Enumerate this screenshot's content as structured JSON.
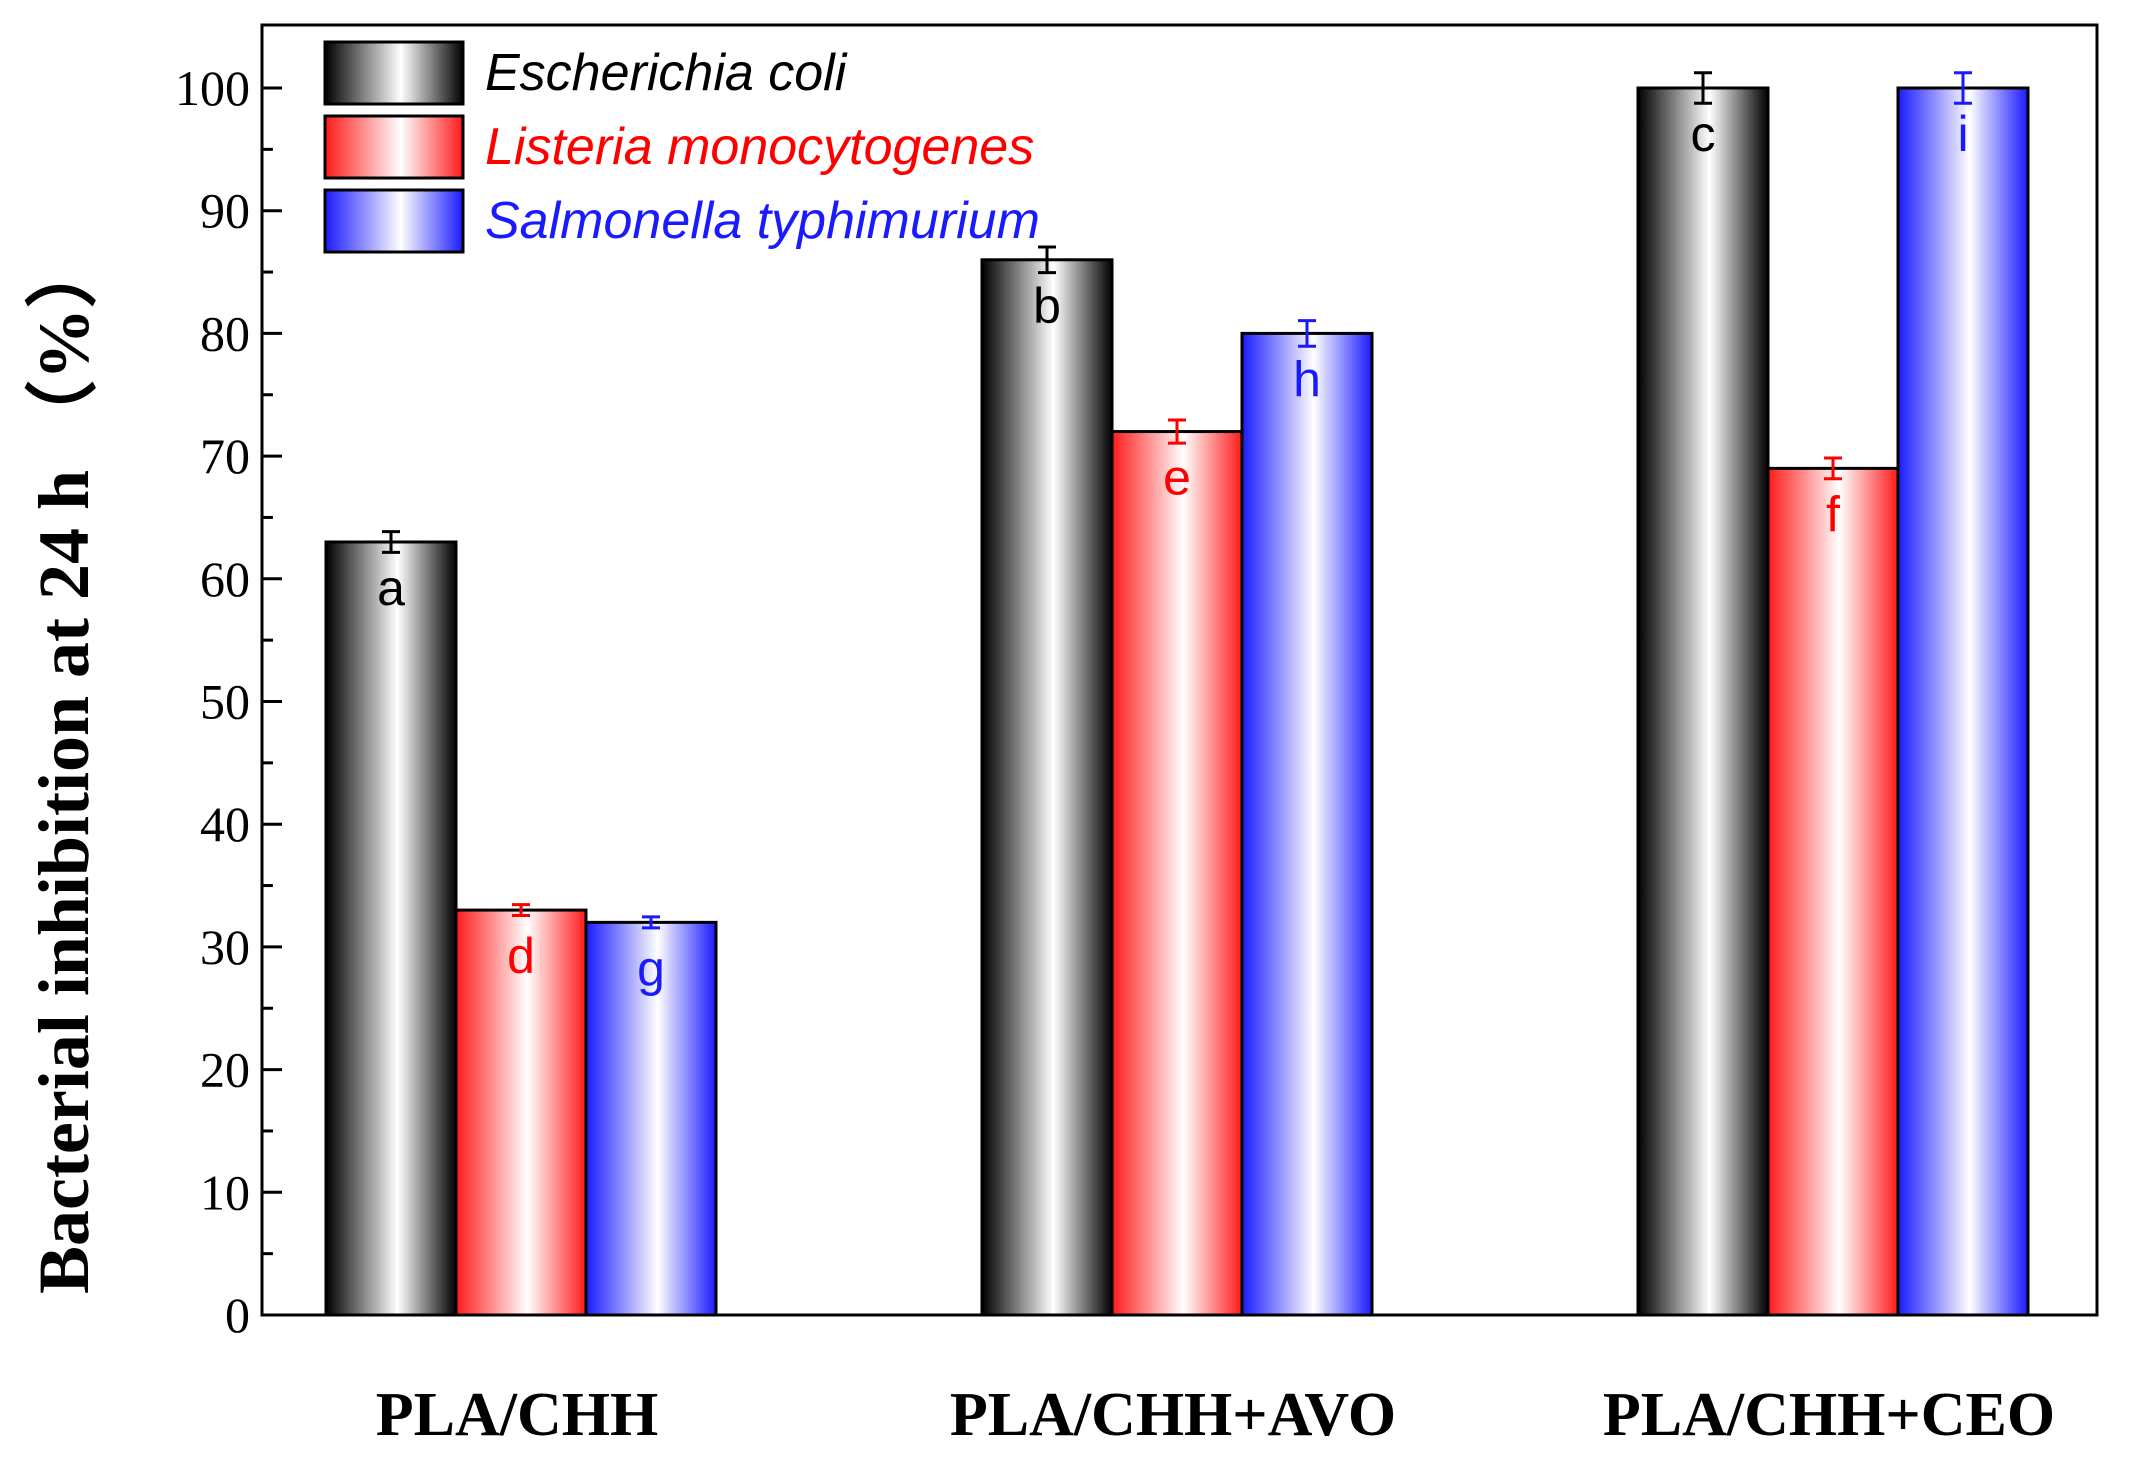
{
  "chart_data": {
    "type": "bar",
    "title": "",
    "xlabel": "",
    "ylabel": "Bacterial inhibition at 24 h （%）",
    "ylim": [
      0,
      100
    ],
    "yticks": [
      0,
      10,
      20,
      30,
      40,
      50,
      60,
      70,
      80,
      90,
      100
    ],
    "grid": false,
    "legend_position": "top-left",
    "categories": [
      "PLA/CHH",
      "PLA/CHH+AVO",
      "PLA/CHH+CEO"
    ],
    "series": [
      {
        "name": "Escherichia coli",
        "color": "#000000",
        "text_color": "#000000",
        "values": [
          63,
          86,
          100
        ],
        "errors": [
          0.6,
          0.8,
          1.0
        ],
        "labels": [
          "a",
          "b",
          "c"
        ]
      },
      {
        "name": "Listeria monocytogenes",
        "color": "#ff1a1a",
        "text_color": "#ff0000",
        "values": [
          33,
          72,
          69
        ],
        "errors": [
          0.2,
          0.7,
          0.6
        ],
        "labels": [
          "d",
          "e",
          "f"
        ]
      },
      {
        "name": "Salmonella typhimurium",
        "color": "#1a1aff",
        "text_color": "#1a1aff",
        "values": [
          32,
          80,
          100
        ],
        "errors": [
          0.2,
          0.8,
          1.0
        ],
        "labels": [
          "g",
          "h",
          "i"
        ]
      }
    ]
  }
}
